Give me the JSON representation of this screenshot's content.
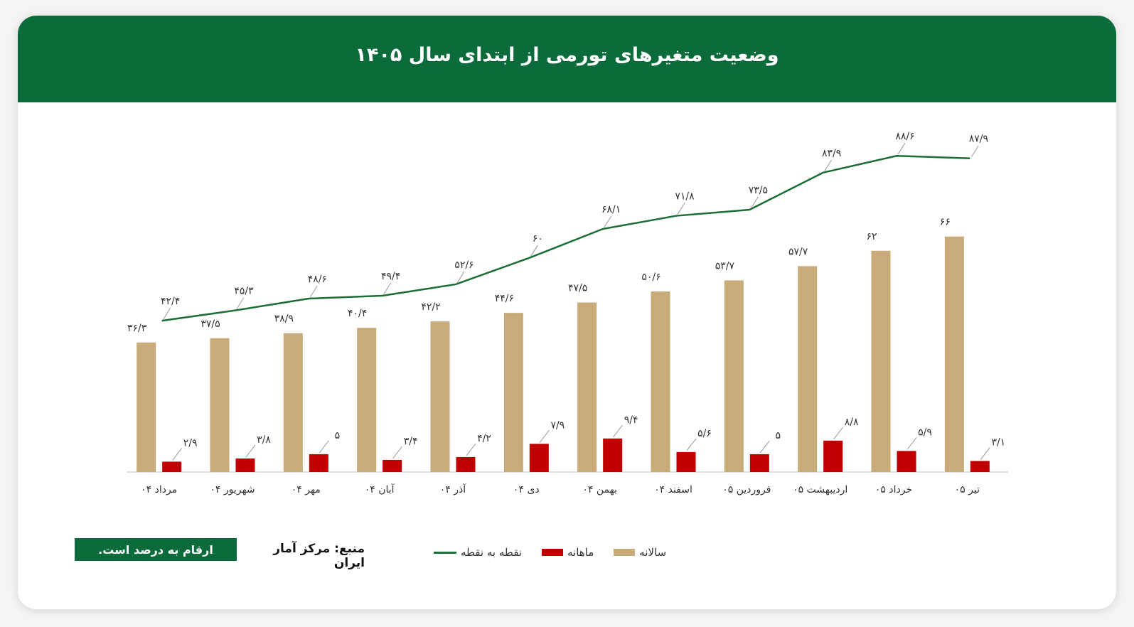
{
  "title": "وضعیت متغیرهای تورمی از ابتدای سال ۱۴۰۵",
  "note": "ارقام به درصد است.",
  "source": "منبع: مرکز آمار ایران",
  "colors": {
    "header": "#0b6b3a",
    "annual": "#c8ab78",
    "monthly": "#c00000",
    "point": "#1b6e35"
  },
  "chart_data": {
    "type": "bar",
    "categories": [
      "مرداد ۰۴",
      "شهریور ۰۴",
      "مهر ۰۴",
      "آبان ۰۴",
      "آذر ۰۴",
      "دی ۰۴",
      "بهمن ۰۴",
      "اسفند ۰۴",
      "فروردین ۰۵",
      "اردیبهشت ۰۵",
      "خرداد ۰۵",
      "تیر ۰۵"
    ],
    "series": [
      {
        "name": "سالانه",
        "type": "bar",
        "values": [
          36.3,
          37.5,
          38.9,
          40.4,
          42.2,
          44.6,
          47.5,
          50.6,
          53.7,
          57.7,
          62,
          66
        ],
        "labels": [
          "۳۶/۳",
          "۳۷/۵",
          "۳۸/۹",
          "۴۰/۴",
          "۴۲/۲",
          "۴۴/۶",
          "۴۷/۵",
          "۵۰/۶",
          "۵۳/۷",
          "۵۷/۷",
          "۶۲",
          "۶۶"
        ]
      },
      {
        "name": "ماهانه",
        "type": "bar",
        "values": [
          2.9,
          3.8,
          5,
          3.4,
          4.2,
          7.9,
          9.4,
          5.6,
          5,
          8.8,
          5.9,
          3.1
        ],
        "labels": [
          "۲/۹",
          "۳/۸",
          "۵",
          "۳/۴",
          "۴/۲",
          "۷/۹",
          "۹/۴",
          "۵/۶",
          "۵",
          "۸/۸",
          "۵/۹",
          "۳/۱"
        ]
      },
      {
        "name": "نقطه به نقطه",
        "type": "line",
        "values": [
          42.4,
          45.3,
          48.6,
          49.4,
          52.6,
          60,
          68.1,
          71.8,
          73.5,
          83.9,
          88.6,
          87.9
        ],
        "labels": [
          "۴۲/۴",
          "۴۵/۳",
          "۴۸/۶",
          "۴۹/۴",
          "۵۲/۶",
          "۶۰",
          "۶۸/۱",
          "۷۱/۸",
          "۷۳/۵",
          "۸۳/۹",
          "۸۸/۶",
          "۸۷/۹"
        ]
      }
    ],
    "legend": "bottom",
    "grid": false,
    "ylim": [
      0,
      100
    ]
  }
}
